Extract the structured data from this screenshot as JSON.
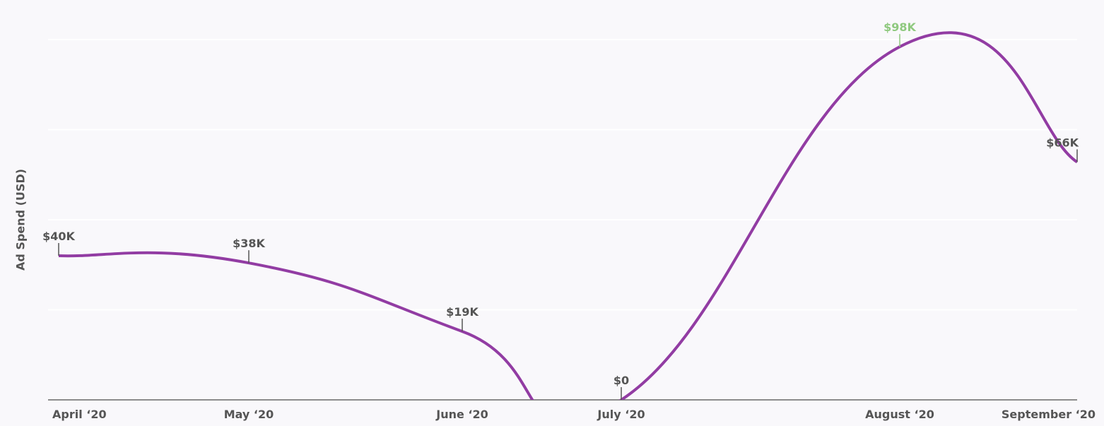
{
  "chart_data": {
    "type": "line",
    "y_label": "Ad Spend (USD)",
    "categories": [
      "April ‘20",
      "May ‘20",
      "June ‘20",
      "July ‘20",
      "August ‘20",
      "September ‘20"
    ],
    "values": [
      40000,
      38000,
      19000,
      0,
      98000,
      66000
    ],
    "value_labels": [
      "$40K",
      "$38K",
      "$19K",
      "$0",
      "$98K",
      "$66K"
    ],
    "color": "#923ca3",
    "highlight_color": "#8fc97f",
    "ylim": [
      0,
      100000
    ],
    "yticks": [
      0,
      25000,
      50000,
      75000,
      100000
    ],
    "grid": true
  }
}
